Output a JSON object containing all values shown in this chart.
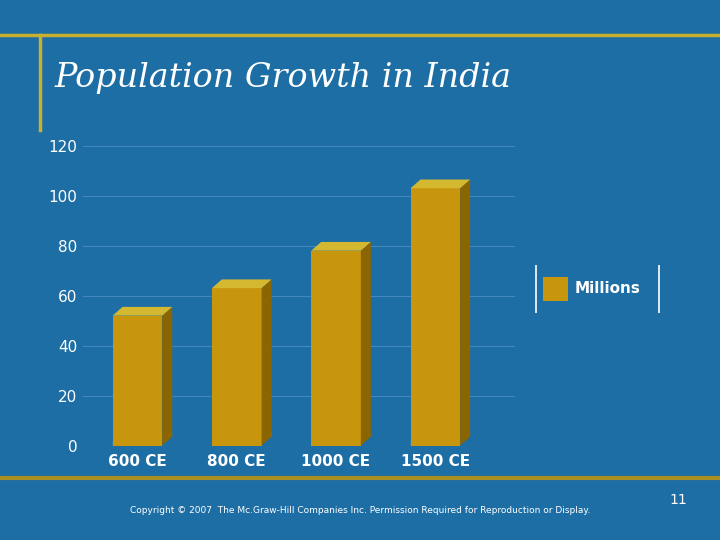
{
  "title": "Population Growth in India",
  "categories": [
    "600 CE",
    "800 CE",
    "1000 CE",
    "1500 CE"
  ],
  "values": [
    52,
    63,
    78,
    103
  ],
  "bar_color_face": "#C8960C",
  "bar_color_top": "#D4B830",
  "bar_color_side": "#8B6500",
  "background_color": "#1C6EA4",
  "plot_bg_color": "#1C6EA4",
  "grid_color": "#4488BB",
  "tick_color": "#FFFFFF",
  "title_color": "#FFFFFF",
  "legend_label": "Millions",
  "ylim": [
    0,
    120
  ],
  "yticks": [
    0,
    20,
    40,
    60,
    80,
    100,
    120
  ],
  "title_fontsize": 24,
  "tick_fontsize": 11,
  "legend_fontsize": 11,
  "copyright_text": "Copyright © 2007  The Mc.Graw-Hill Companies Inc. Permission Required for Reproduction or Display.",
  "page_number": "11",
  "border_color": "#A89020",
  "border_color_top": "#C8B030"
}
